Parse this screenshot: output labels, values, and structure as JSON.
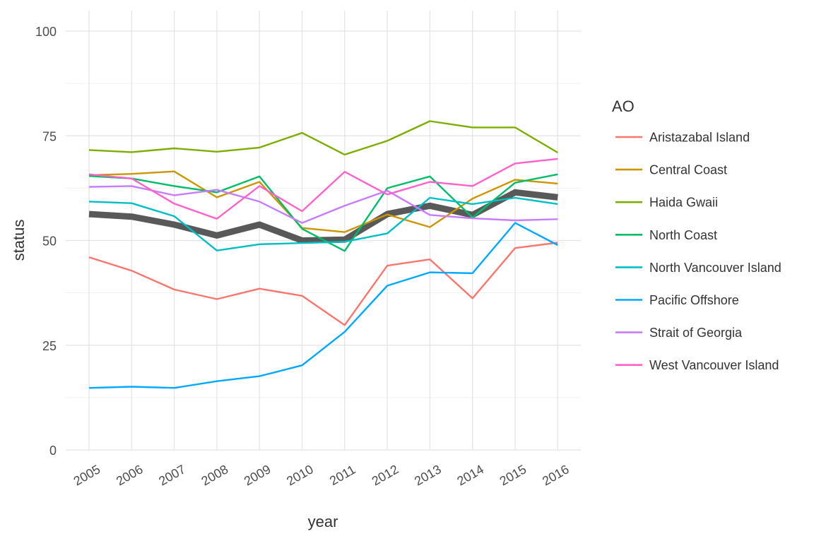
{
  "chart_data": {
    "type": "line",
    "title": "",
    "xlabel": "year",
    "ylabel": "status",
    "x": [
      2005,
      2006,
      2007,
      2008,
      2009,
      2010,
      2011,
      2012,
      2013,
      2014,
      2015,
      2016
    ],
    "ylim": [
      0,
      100
    ],
    "yticks": [
      0,
      25,
      50,
      75,
      100
    ],
    "grid": true,
    "legend": {
      "title": "AO",
      "position": "right"
    },
    "series": [
      {
        "name": "Aristazabal Island",
        "color": "#F8766D",
        "values": [
          46,
          42.8,
          38.3,
          36,
          38.5,
          36.8,
          29.8,
          44,
          45.5,
          36.2,
          48.2,
          49.5
        ]
      },
      {
        "name": "Central Coast",
        "color": "#CD9600",
        "values": [
          65.6,
          65.9,
          66.5,
          60.3,
          64,
          53,
          52,
          56.2,
          53.2,
          60,
          64.5,
          63.6
        ]
      },
      {
        "name": "Haida Gwaii",
        "color": "#7CAE00",
        "values": [
          71.6,
          71.1,
          72,
          71.2,
          72.2,
          75.7,
          70.5,
          73.8,
          78.5,
          77,
          77,
          71
        ]
      },
      {
        "name": "North Coast",
        "color": "#00BE67",
        "values": [
          65.4,
          64.8,
          63,
          61.5,
          65.3,
          52.8,
          47.5,
          62.5,
          65.3,
          55.5,
          63.8,
          65.8
        ]
      },
      {
        "name": "North Vancouver Island",
        "color": "#00BFC4",
        "values": [
          59.3,
          58.9,
          55.8,
          47.6,
          49.1,
          49.4,
          49.7,
          51.7,
          60.2,
          58.7,
          60.2,
          58.7
        ]
      },
      {
        "name": "Pacific Offshore",
        "color": "#00A9FF",
        "values": [
          14.8,
          15.1,
          14.8,
          16.4,
          17.6,
          20.2,
          28.2,
          39.2,
          42.4,
          42.2,
          54.2,
          48.9
        ]
      },
      {
        "name": "Strait of Georgia",
        "color": "#C77CFF",
        "values": [
          62.8,
          63,
          60.8,
          62.1,
          59.3,
          54.2,
          58.3,
          61.9,
          56.1,
          55.3,
          54.8,
          55.1
        ]
      },
      {
        "name": "West Vancouver Island",
        "color": "#FF61CC",
        "values": [
          65.8,
          64.8,
          58.8,
          55.2,
          63,
          57,
          66.4,
          61,
          64,
          63,
          68.4,
          69.5
        ]
      }
    ],
    "overall": {
      "color": "#595959",
      "values": [
        56.3,
        55.7,
        53.8,
        51.2,
        53.8,
        50,
        50.2,
        56.3,
        58.3,
        56.1,
        61.5,
        60.3
      ]
    }
  }
}
